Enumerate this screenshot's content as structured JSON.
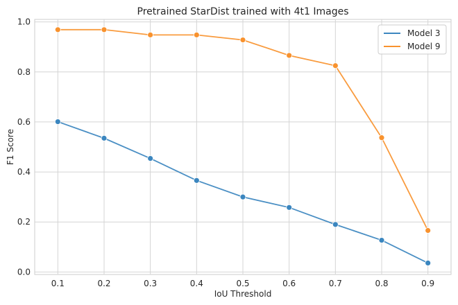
{
  "chart_data": {
    "type": "line",
    "title": "Pretrained StarDist trained with 4t1 Images",
    "xlabel": "IoU Threshold",
    "ylabel": "F1 Score",
    "x": [
      0.1,
      0.2,
      0.3,
      0.4,
      0.5,
      0.6,
      0.7,
      0.8,
      0.9
    ],
    "x_tick_labels": [
      "0.1",
      "0.2",
      "0.3",
      "0.4",
      "0.5",
      "0.6",
      "0.7",
      "0.8",
      "0.9"
    ],
    "y_ticks": [
      0.0,
      0.2,
      0.4,
      0.6,
      0.8,
      1.0
    ],
    "y_tick_labels": [
      "0.0",
      "0.2",
      "0.4",
      "0.6",
      "0.8",
      "1.0"
    ],
    "xlim": [
      0.05,
      0.95
    ],
    "ylim": [
      -0.01,
      1.01
    ],
    "grid": true,
    "legend_position": "top-right",
    "series": [
      {
        "name": "Model 3",
        "color": "#3b86bf",
        "values": [
          0.601,
          0.535,
          0.454,
          0.366,
          0.3,
          0.258,
          0.19,
          0.127,
          0.036
        ]
      },
      {
        "name": "Model 9",
        "color": "#f8922e",
        "values": [
          0.969,
          0.969,
          0.948,
          0.948,
          0.928,
          0.866,
          0.825,
          0.537,
          0.166
        ]
      }
    ]
  }
}
